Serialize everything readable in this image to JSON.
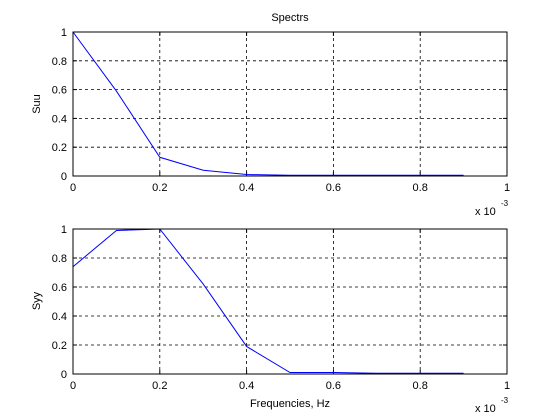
{
  "chart_data": [
    {
      "type": "line",
      "title": "Spectrs",
      "xlabel": "",
      "ylabel": "Suu",
      "xlim": [
        0,
        1
      ],
      "ylim": [
        0,
        1
      ],
      "x_ticks": [
        "0",
        "0.2",
        "0.4",
        "0.6",
        "0.8",
        "1"
      ],
      "y_ticks": [
        "0",
        "0.2",
        "0.4",
        "0.6",
        "0.8",
        "1"
      ],
      "x_scale_note": {
        "base": "x 10",
        "exponent": "-3"
      },
      "grid": true,
      "line_color": "#0000ff",
      "series": [
        {
          "x": [
            0,
            0.1,
            0.2,
            0.3,
            0.4,
            0.5,
            0.6,
            0.7,
            0.8,
            0.9
          ],
          "y": [
            1.0,
            0.59,
            0.13,
            0.04,
            0.01,
            0.005,
            0.005,
            0.005,
            0.005,
            0.005
          ]
        }
      ]
    },
    {
      "type": "line",
      "title": "",
      "xlabel": "Frequencies, Hz",
      "ylabel": "Syy",
      "xlim": [
        0,
        1
      ],
      "ylim": [
        0,
        1
      ],
      "x_ticks": [
        "0",
        "0.2",
        "0.4",
        "0.6",
        "0.8",
        "1"
      ],
      "y_ticks": [
        "0",
        "0.2",
        "0.4",
        "0.6",
        "0.8",
        "1"
      ],
      "x_scale_note": {
        "base": "x 10",
        "exponent": "-3"
      },
      "grid": true,
      "line_color": "#0000ff",
      "series": [
        {
          "x": [
            0,
            0.1,
            0.2,
            0.3,
            0.4,
            0.5,
            0.6,
            0.7,
            0.8,
            0.9
          ],
          "y": [
            0.74,
            0.99,
            1.0,
            0.62,
            0.19,
            0.01,
            0.01,
            0.005,
            0.005,
            0.005
          ]
        }
      ]
    }
  ]
}
